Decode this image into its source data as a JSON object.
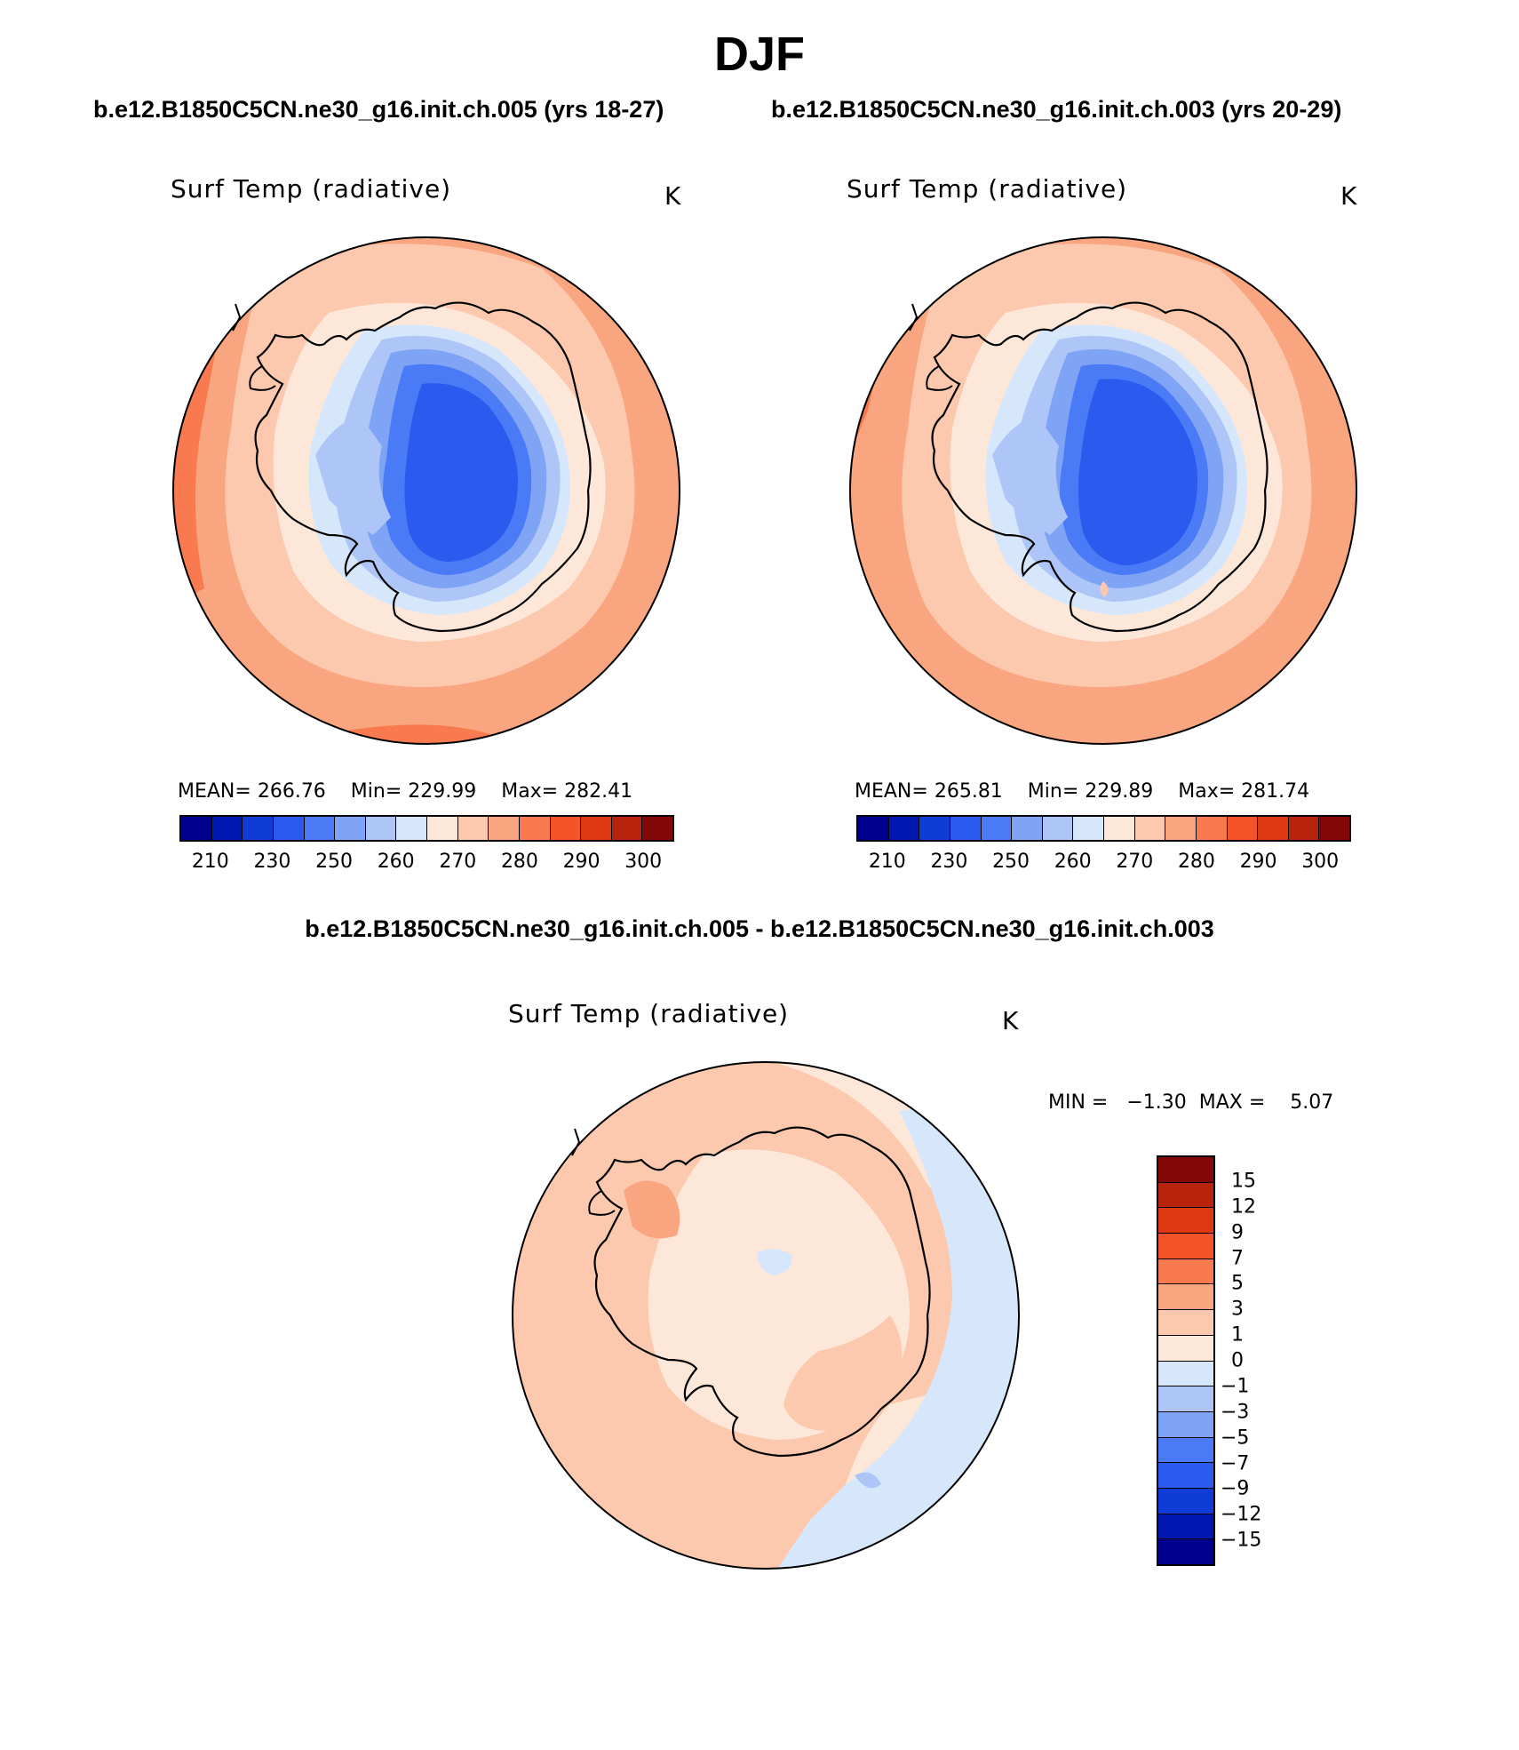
{
  "title": "DJF",
  "panels": {
    "left": {
      "case_title": "b.e12.B1850C5CN.ne30_g16.init.ch.005 (yrs 18-27)",
      "variable": "Surf Temp (radiative)",
      "units": "K",
      "mean_label": "MEAN=",
      "mean": "266.76",
      "min_label": "Min=",
      "min": "229.99",
      "max_label": "Max=",
      "max": "282.41"
    },
    "right": {
      "case_title": "b.e12.B1850C5CN.ne30_g16.init.ch.003 (yrs 20-29)",
      "variable": "Surf Temp (radiative)",
      "units": "K",
      "mean_label": "MEAN=",
      "mean": "265.81",
      "min_label": "Min=",
      "min": "229.89",
      "max_label": "Max=",
      "max": "281.74"
    },
    "diff": {
      "case_title": "b.e12.B1850C5CN.ne30_g16.init.ch.005 - b.e12.B1850C5CN.ne30_g16.init.ch.003",
      "variable": "Surf Temp (radiative)",
      "units": "K",
      "min_label": "MIN =",
      "min": "−1.30",
      "max_label": "MAX =",
      "max": "5.07"
    }
  },
  "colorbar_abs": {
    "colors": [
      "#00008f",
      "#0018b0",
      "#0f3cd6",
      "#2a5aee",
      "#4a7af5",
      "#7fa3f5",
      "#aec6f7",
      "#d6e6fb",
      "#fde7d9",
      "#fcc8ae",
      "#f9a680",
      "#f87a4e",
      "#f5532a",
      "#de3812",
      "#b8230b",
      "#820707"
    ],
    "tick_labels": [
      "210",
      "230",
      "250",
      "260",
      "270",
      "280",
      "290",
      "300"
    ]
  },
  "colorbar_diff": {
    "colors": [
      "#820707",
      "#b8230b",
      "#de3812",
      "#f5532a",
      "#f87a4e",
      "#f9a680",
      "#fcc8ae",
      "#fde7d9",
      "#d6e6fb",
      "#aec6f7",
      "#7fa3f5",
      "#4a7af5",
      "#2a5aee",
      "#0f3cd6",
      "#0018b0",
      "#00008f"
    ],
    "tick_labels": [
      "15",
      "12",
      "9",
      "7",
      "5",
      "3",
      "1",
      "0",
      "−1",
      "−3",
      "−5",
      "−7",
      "−9",
      "−12",
      "−15"
    ]
  }
}
